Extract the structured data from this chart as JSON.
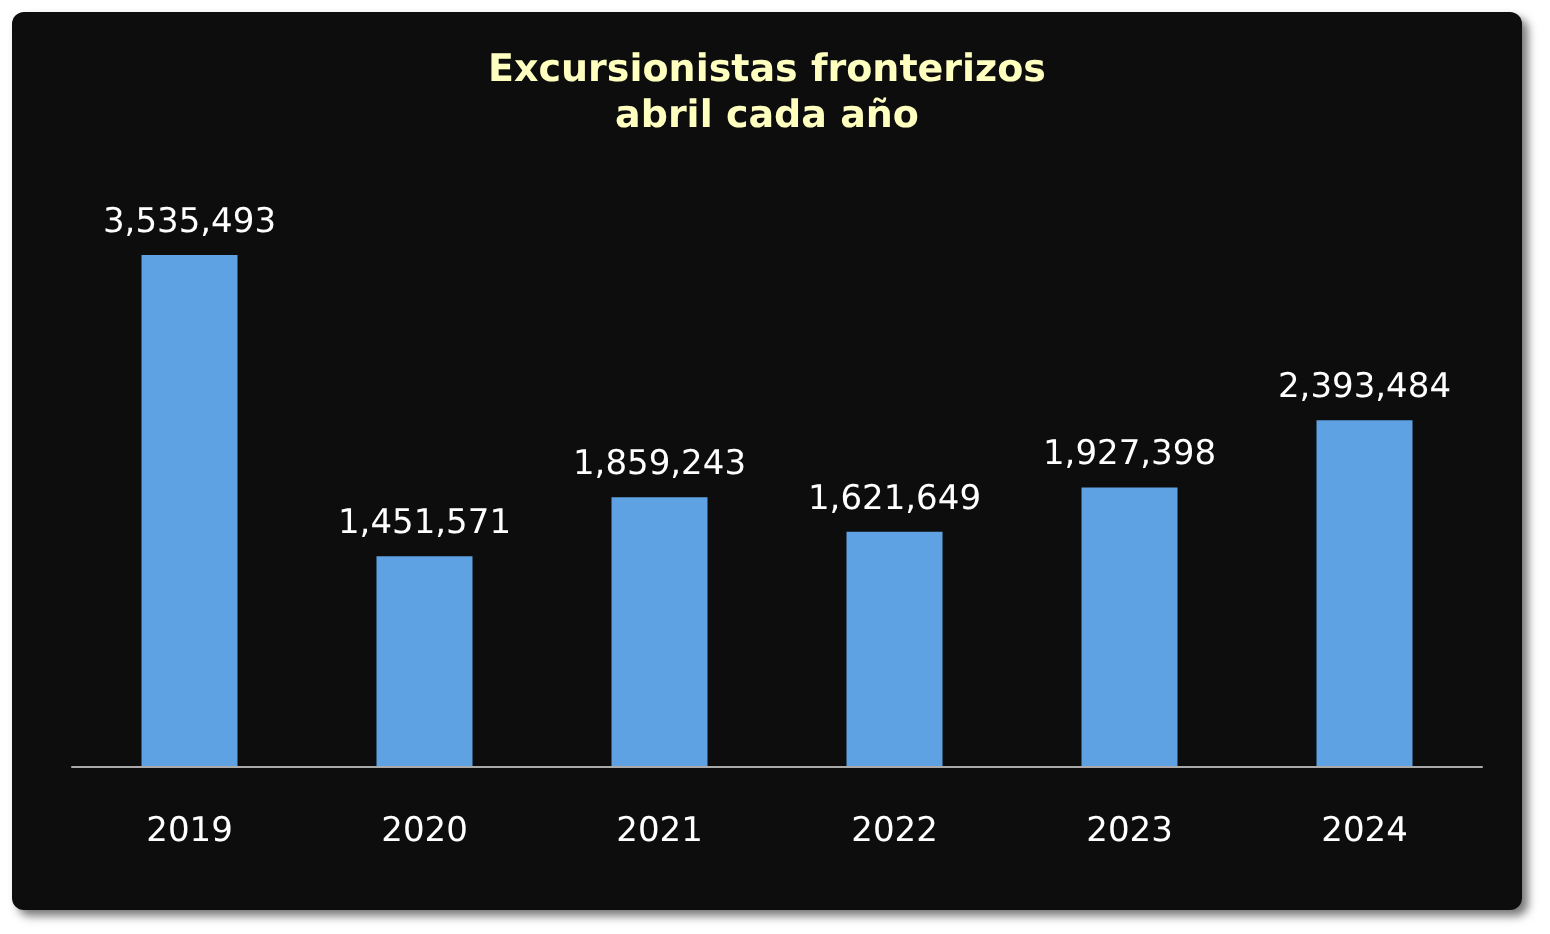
{
  "chart_data": {
    "type": "bar",
    "title": "Excursionistas fronterizos",
    "subtitle": "abril cada año",
    "categories": [
      "2019",
      "2020",
      "2021",
      "2022",
      "2023",
      "2024"
    ],
    "values": [
      3535493,
      1451571,
      1859243,
      1621649,
      1927398,
      2393484
    ],
    "value_labels": [
      "3,535,493",
      "1,451,571",
      "1,859,243",
      "1,621,649",
      "1,927,398",
      "2,393,484"
    ],
    "color": "#5ea2e3"
  }
}
